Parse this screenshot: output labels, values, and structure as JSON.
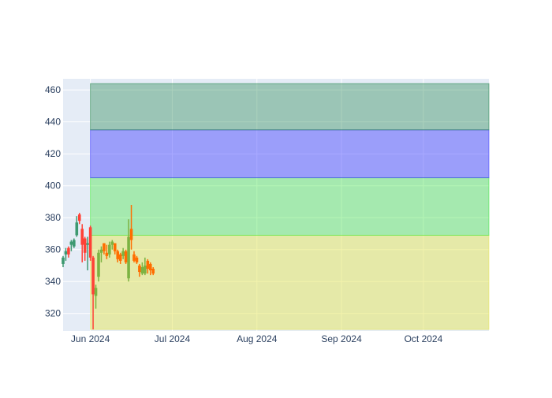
{
  "chart_data": {
    "type": "candlestick",
    "title": "",
    "xlabel": "",
    "ylabel": "",
    "grid": true,
    "legend": "none",
    "xlim": [
      "2024-05-22",
      "2024-10-25"
    ],
    "ylim": [
      309,
      467
    ],
    "x_ticks": [
      {
        "date": "2024-06-01",
        "label": "Jun 2024"
      },
      {
        "date": "2024-07-01",
        "label": "Jul 2024"
      },
      {
        "date": "2024-08-01",
        "label": "Aug 2024"
      },
      {
        "date": "2024-09-01",
        "label": "Sep 2024"
      },
      {
        "date": "2024-10-01",
        "label": "Oct 2024"
      }
    ],
    "y_ticks": [
      320,
      340,
      360,
      380,
      400,
      420,
      440,
      460
    ],
    "colors": {
      "plot_bg": "#e5ecf6",
      "grid": "#ffffff",
      "increasing_a": "#3d9970",
      "decreasing_a": "#ff4136",
      "increasing_b": "#7cb342",
      "decreasing_b": "#ff6d00"
    },
    "bands": [
      {
        "x0": "2024-06-01",
        "x1": "2024-10-25",
        "y0": 310,
        "y1": 369,
        "color": "#e6e65a",
        "opacity": 0.5
      },
      {
        "x0": "2024-06-01",
        "x1": "2024-10-25",
        "y0": 369,
        "y1": 405,
        "color": "#45e645",
        "opacity": 0.4
      },
      {
        "x0": "2024-06-01",
        "x1": "2024-10-25",
        "y0": 405,
        "y1": 435,
        "color": "#4040ff",
        "opacity": 0.45
      },
      {
        "x0": "2024-06-01",
        "x1": "2024-10-25",
        "y0": 435,
        "y1": 464,
        "color": "#2e8b57",
        "opacity": 0.4
      }
    ],
    "series": [
      {
        "style": "a",
        "candles": [
          {
            "date": "2024-05-22",
            "open": 351,
            "high": 356,
            "low": 349,
            "close": 355
          },
          {
            "date": "2024-05-23",
            "open": 357,
            "high": 361,
            "low": 353,
            "close": 359
          },
          {
            "date": "2024-05-24",
            "open": 361,
            "high": 362,
            "low": 355,
            "close": 357
          },
          {
            "date": "2024-05-25",
            "open": 363,
            "high": 366,
            "low": 359,
            "close": 365
          },
          {
            "date": "2024-05-26",
            "open": 362,
            "high": 367,
            "low": 361,
            "close": 366
          },
          {
            "date": "2024-05-27",
            "open": 369,
            "high": 381,
            "low": 368,
            "close": 377
          },
          {
            "date": "2024-05-28",
            "open": 382,
            "high": 383,
            "low": 376,
            "close": 378
          },
          {
            "date": "2024-05-29",
            "open": 373,
            "high": 376,
            "low": 352,
            "close": 363
          },
          {
            "date": "2024-05-30",
            "open": 367,
            "high": 368,
            "low": 353,
            "close": 358
          },
          {
            "date": "2024-05-31",
            "open": 363,
            "high": 368,
            "low": 347,
            "close": 364
          }
        ]
      },
      {
        "style": "a2",
        "candles": [
          {
            "date": "2024-06-01",
            "open": 374,
            "high": 375,
            "low": 353,
            "close": 355
          },
          {
            "date": "2024-06-02",
            "open": 355,
            "high": 356,
            "low": 310,
            "close": 332
          }
        ]
      },
      {
        "style": "b",
        "candles": [
          {
            "date": "2024-06-03",
            "open": 331,
            "high": 338,
            "low": 323,
            "close": 336
          },
          {
            "date": "2024-06-04",
            "open": 343,
            "high": 360,
            "low": 340,
            "close": 358
          },
          {
            "date": "2024-06-05",
            "open": 358,
            "high": 362,
            "low": 352,
            "close": 360
          },
          {
            "date": "2024-06-06",
            "open": 364,
            "high": 364,
            "low": 357,
            "close": 359
          },
          {
            "date": "2024-06-07",
            "open": 358,
            "high": 363,
            "low": 354,
            "close": 356
          },
          {
            "date": "2024-06-08",
            "open": 357,
            "high": 365,
            "low": 355,
            "close": 363
          },
          {
            "date": "2024-06-09",
            "open": 363,
            "high": 366,
            "low": 360,
            "close": 365
          },
          {
            "date": "2024-06-10",
            "open": 364,
            "high": 364,
            "low": 357,
            "close": 359
          },
          {
            "date": "2024-06-11",
            "open": 359,
            "high": 360,
            "low": 352,
            "close": 354
          },
          {
            "date": "2024-06-12",
            "open": 357,
            "high": 358,
            "low": 351,
            "close": 353
          },
          {
            "date": "2024-06-13",
            "open": 356,
            "high": 361,
            "low": 354,
            "close": 359
          },
          {
            "date": "2024-06-14",
            "open": 359,
            "high": 360,
            "low": 351,
            "close": 352
          },
          {
            "date": "2024-06-15",
            "open": 342,
            "high": 379,
            "low": 340,
            "close": 368
          },
          {
            "date": "2024-06-16",
            "open": 373,
            "high": 388,
            "low": 360,
            "close": 366
          },
          {
            "date": "2024-06-17",
            "open": 357,
            "high": 359,
            "low": 352,
            "close": 353
          },
          {
            "date": "2024-06-18",
            "open": 355,
            "high": 356,
            "low": 351,
            "close": 352
          },
          {
            "date": "2024-06-19",
            "open": 350,
            "high": 351,
            "low": 343,
            "close": 346
          },
          {
            "date": "2024-06-20",
            "open": 345,
            "high": 352,
            "low": 344,
            "close": 349
          },
          {
            "date": "2024-06-21",
            "open": 345,
            "high": 355,
            "low": 344,
            "close": 350
          },
          {
            "date": "2024-06-22",
            "open": 353,
            "high": 354,
            "low": 345,
            "close": 348
          },
          {
            "date": "2024-06-23",
            "open": 351,
            "high": 352,
            "low": 344,
            "close": 347
          },
          {
            "date": "2024-06-24",
            "open": 348,
            "high": 349,
            "low": 344,
            "close": 345
          }
        ]
      }
    ]
  }
}
